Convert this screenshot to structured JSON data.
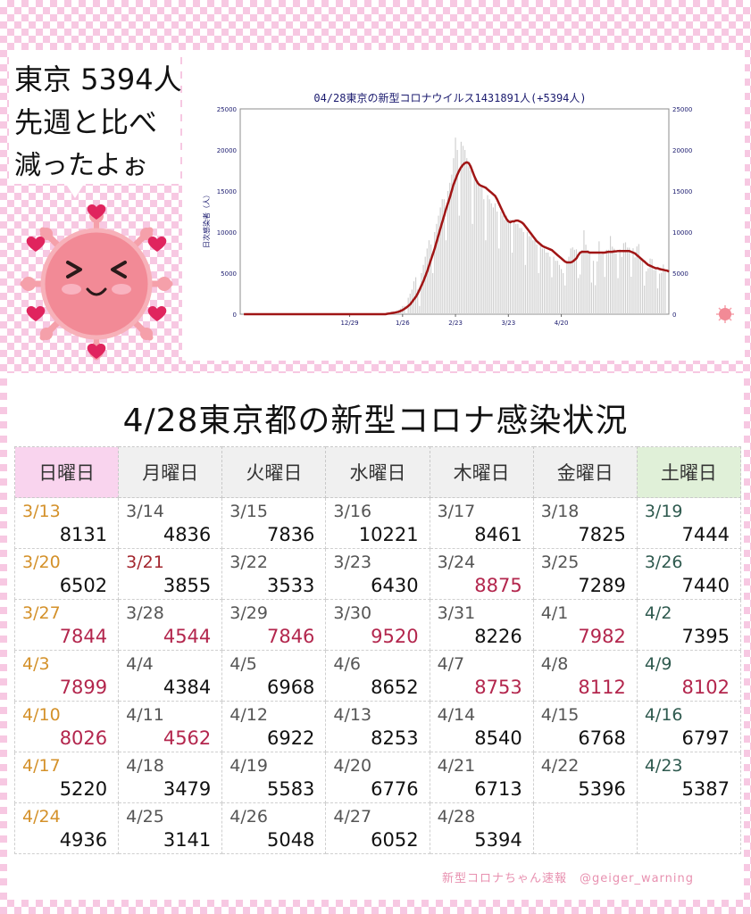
{
  "speech": {
    "line1": "東京 5394人",
    "line2": "先週と比べ",
    "line3": "減ったよぉ"
  },
  "chart_data": {
    "type": "bar",
    "title": "04/28東京の新型コロナウイルス1431891人(+5394人)",
    "ylabel": "日次感染者（人）",
    "ylim": [
      0,
      25000
    ],
    "yticks": [
      "0",
      "5000",
      "10000",
      "15000",
      "20000",
      "25000"
    ],
    "xtick_labels": [
      "12/29",
      "1/26",
      "2/23",
      "3/23",
      "4/20"
    ],
    "daily": [
      0,
      0,
      0,
      0,
      0,
      0,
      0,
      0,
      0,
      0,
      0,
      0,
      0,
      0,
      0,
      0,
      0,
      0,
      0,
      0,
      0,
      0,
      0,
      0,
      0,
      0,
      0,
      0,
      0,
      0,
      0,
      0,
      0,
      0,
      0,
      0,
      0,
      0,
      0,
      0,
      0,
      0,
      0,
      0,
      0,
      0,
      0,
      0,
      0,
      0,
      0,
      0,
      0,
      0,
      0,
      0,
      0,
      0,
      0,
      0,
      0,
      0,
      0,
      0,
      0,
      0,
      0,
      0,
      0,
      0,
      0,
      0,
      0,
      0,
      0,
      0,
      80,
      120,
      300,
      0,
      200,
      300,
      500,
      700,
      1000,
      1000,
      0,
      2000,
      2500,
      3000,
      4000,
      4500,
      3000,
      1000,
      5000,
      6000,
      7000,
      8000,
      9000,
      8500,
      5000,
      10000,
      11000,
      12000,
      13000,
      14000,
      14000,
      9000,
      15000,
      16000,
      17000,
      19000,
      21500,
      20000,
      12000,
      21000,
      20500,
      20000,
      19000,
      18000,
      17500,
      11000,
      17000,
      16500,
      16000,
      15500,
      15500,
      14000,
      9000,
      14500,
      14000,
      13500,
      13000,
      13500,
      12500,
      8000,
      12500,
      12000,
      11500,
      12000,
      11500,
      11500,
      7500,
      11500,
      11000,
      11000,
      10500,
      10500,
      10000,
      6000,
      10000,
      9500,
      9500,
      9000,
      9000,
      8500,
      5000,
      8500,
      8000,
      8000,
      7500,
      7500,
      7000,
      4500,
      7000,
      6500,
      6500,
      6000,
      5500,
      5000,
      3500,
      6500,
      7000,
      8000,
      8131,
      7844,
      7899,
      4400,
      4836,
      7836,
      10221,
      8461,
      7825,
      7444,
      3855,
      6502,
      3533,
      6430,
      8875,
      7289,
      7440,
      4544,
      7844,
      7846,
      9520,
      8226,
      7982,
      7395,
      4384,
      7899,
      6968,
      8652,
      8753,
      8112,
      8102,
      4562,
      8026,
      6922,
      8253,
      8540,
      6768,
      6797,
      3479,
      5220,
      5583,
      6776,
      6713,
      5396,
      5387,
      3141,
      4936,
      5048,
      6052,
      5394
    ],
    "avg7": [
      0,
      0,
      0,
      0,
      0,
      0,
      0,
      0,
      0,
      0,
      0,
      0,
      0,
      0,
      0,
      0,
      0,
      0,
      0,
      0,
      0,
      0,
      0,
      0,
      0,
      0,
      0,
      0,
      0,
      0,
      0,
      0,
      0,
      0,
      0,
      0,
      0,
      0,
      0,
      0,
      0,
      0,
      0,
      0,
      0,
      0,
      0,
      0,
      0,
      0,
      0,
      0,
      0,
      0,
      0,
      0,
      0,
      0,
      0,
      0,
      0,
      0,
      0,
      0,
      0,
      0,
      0,
      0,
      0,
      0,
      0,
      0,
      0,
      0,
      0,
      0,
      50,
      80,
      120,
      160,
      200,
      250,
      300,
      400,
      500,
      650,
      800,
      1000,
      1200,
      1500,
      1800,
      2100,
      2500,
      3000,
      3500,
      4000,
      4600,
      5200,
      5900,
      6600,
      7300,
      8000,
      8800,
      9600,
      10400,
      11200,
      12000,
      12800,
      13500,
      14200,
      15000,
      15800,
      16400,
      17000,
      17500,
      17900,
      18200,
      18400,
      18500,
      18400,
      18000,
      17400,
      16800,
      16300,
      15900,
      15700,
      15600,
      15500,
      15400,
      15200,
      15000,
      14800,
      14600,
      14400,
      14000,
      13500,
      13000,
      12500,
      12000,
      11600,
      11300,
      11200,
      11300,
      11300,
      11400,
      11400,
      11300,
      11200,
      11000,
      10700,
      10400,
      10100,
      9800,
      9500,
      9200,
      8900,
      8700,
      8500,
      8300,
      8200,
      8100,
      8000,
      7900,
      7800,
      7600,
      7400,
      7200,
      7000,
      6800,
      6600,
      6400,
      6300,
      6300,
      6300,
      6400,
      6600,
      6800,
      7200,
      7500,
      7600,
      7600,
      7600,
      7600,
      7500,
      7500,
      7500,
      7500,
      7500,
      7500,
      7500,
      7500,
      7500,
      7550,
      7600,
      7600,
      7600,
      7650,
      7650,
      7700,
      7700,
      7700,
      7700,
      7700,
      7700,
      7700,
      7600,
      7500,
      7400,
      7200,
      7000,
      6800,
      6600,
      6400,
      6200,
      6000,
      5900,
      5800,
      5700,
      5600,
      5600,
      5500,
      5450,
      5400,
      5350,
      5300,
      5200
    ]
  },
  "table": {
    "title": "4/28東京都の新型コロナ感染状況",
    "headers": [
      "日曜日",
      "月曜日",
      "火曜日",
      "水曜日",
      "木曜日",
      "金曜日",
      "土曜日"
    ],
    "weeks": [
      [
        {
          "d": "3/13",
          "v": "8131"
        },
        {
          "d": "3/14",
          "v": "4836"
        },
        {
          "d": "3/15",
          "v": "7836"
        },
        {
          "d": "3/16",
          "v": "10221"
        },
        {
          "d": "3/17",
          "v": "8461"
        },
        {
          "d": "3/18",
          "v": "7825"
        },
        {
          "d": "3/19",
          "v": "7444"
        }
      ],
      [
        {
          "d": "3/20",
          "v": "6502"
        },
        {
          "d": "3/21",
          "v": "3855",
          "holiday": true
        },
        {
          "d": "3/22",
          "v": "3533"
        },
        {
          "d": "3/23",
          "v": "6430"
        },
        {
          "d": "3/24",
          "v": "8875",
          "hi": true
        },
        {
          "d": "3/25",
          "v": "7289"
        },
        {
          "d": "3/26",
          "v": "7440"
        }
      ],
      [
        {
          "d": "3/27",
          "v": "7844",
          "hi": true
        },
        {
          "d": "3/28",
          "v": "4544",
          "hi": true
        },
        {
          "d": "3/29",
          "v": "7846",
          "hi": true
        },
        {
          "d": "3/30",
          "v": "9520",
          "hi": true
        },
        {
          "d": "3/31",
          "v": "8226"
        },
        {
          "d": "4/1",
          "v": "7982",
          "hi": true
        },
        {
          "d": "4/2",
          "v": "7395"
        }
      ],
      [
        {
          "d": "4/3",
          "v": "7899",
          "hi": true
        },
        {
          "d": "4/4",
          "v": "4384"
        },
        {
          "d": "4/5",
          "v": "6968"
        },
        {
          "d": "4/6",
          "v": "8652"
        },
        {
          "d": "4/7",
          "v": "8753",
          "hi": true
        },
        {
          "d": "4/8",
          "v": "8112",
          "hi": true
        },
        {
          "d": "4/9",
          "v": "8102",
          "hi": true
        }
      ],
      [
        {
          "d": "4/10",
          "v": "8026",
          "hi": true
        },
        {
          "d": "4/11",
          "v": "4562",
          "hi": true
        },
        {
          "d": "4/12",
          "v": "6922"
        },
        {
          "d": "4/13",
          "v": "8253"
        },
        {
          "d": "4/14",
          "v": "8540"
        },
        {
          "d": "4/15",
          "v": "6768"
        },
        {
          "d": "4/16",
          "v": "6797"
        }
      ],
      [
        {
          "d": "4/17",
          "v": "5220"
        },
        {
          "d": "4/18",
          "v": "3479"
        },
        {
          "d": "4/19",
          "v": "5583"
        },
        {
          "d": "4/20",
          "v": "6776"
        },
        {
          "d": "4/21",
          "v": "6713"
        },
        {
          "d": "4/22",
          "v": "5396"
        },
        {
          "d": "4/23",
          "v": "5387"
        }
      ],
      [
        {
          "d": "4/24",
          "v": "4936"
        },
        {
          "d": "4/25",
          "v": "3141"
        },
        {
          "d": "4/26",
          "v": "5048"
        },
        {
          "d": "4/27",
          "v": "6052"
        },
        {
          "d": "4/28",
          "v": "5394"
        },
        {
          "d": "",
          "v": ""
        },
        {
          "d": "",
          "v": ""
        }
      ]
    ]
  },
  "credit": "新型コロナちゃん速報　@geiger_warning",
  "colors": {
    "bars": "#cfcfcf",
    "avg_line": "#a01515",
    "axis_text": "#1a1a6e",
    "highlight_value": "#b3264d",
    "virus_body": "#f28a96",
    "heart": "#e0245e"
  }
}
